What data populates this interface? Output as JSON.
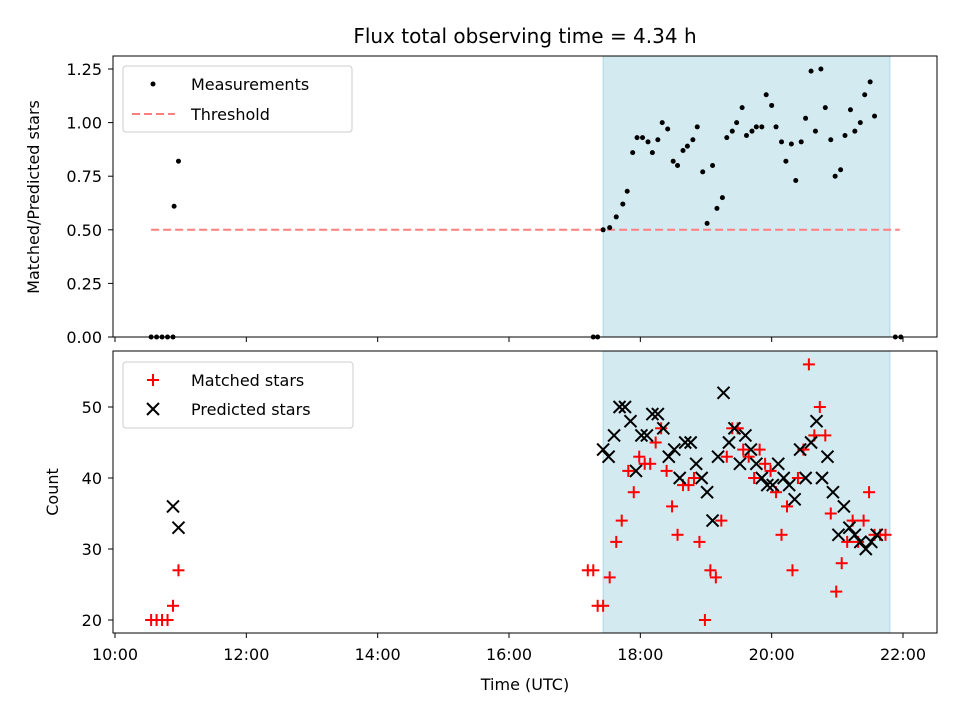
{
  "chart_data": [
    {
      "type": "scatter",
      "title": "Flux total observing time = 4.34 h",
      "xlabel": "",
      "ylabel": "Matched/Predicted stars",
      "xlim": [
        "10:00",
        "22:30"
      ],
      "ylim": [
        0,
        1.3
      ],
      "yticks": [
        "0.00",
        "0.25",
        "0.50",
        "0.75",
        "1.00",
        "1.25"
      ],
      "shaded_region": {
        "x_start": "17:26",
        "x_end": "21:48",
        "color": "#d3eaf0"
      },
      "legend": {
        "position": "top-left",
        "entries": [
          "Measurements",
          "Threshold"
        ]
      },
      "threshold": {
        "name": "Threshold",
        "y": 0.5,
        "x_start": "10:33",
        "x_end": "21:57",
        "color": "#ff7f7f",
        "style": "dashed"
      },
      "series": [
        {
          "name": "Measurements",
          "color": "#000000",
          "marker": "dot",
          "points": [
            [
              "10:33",
              0
            ],
            [
              "10:38",
              0
            ],
            [
              "10:43",
              0
            ],
            [
              "10:48",
              0
            ],
            [
              "10:53",
              0
            ],
            [
              "10:54",
              0.61
            ],
            [
              "10:58",
              0.82
            ],
            [
              "17:17",
              0
            ],
            [
              "17:21",
              0
            ],
            [
              "17:26",
              0.5
            ],
            [
              "17:32",
              0.51
            ],
            [
              "17:38",
              0.56
            ],
            [
              "17:44",
              0.62
            ],
            [
              "17:48",
              0.68
            ],
            [
              "17:53",
              0.86
            ],
            [
              "17:57",
              0.93
            ],
            [
              "18:02",
              0.93
            ],
            [
              "18:07",
              0.91
            ],
            [
              "18:11",
              0.86
            ],
            [
              "18:16",
              0.92
            ],
            [
              "18:20",
              1.0
            ],
            [
              "18:25",
              0.97
            ],
            [
              "18:30",
              0.82
            ],
            [
              "18:34",
              0.8
            ],
            [
              "18:39",
              0.87
            ],
            [
              "18:43",
              0.89
            ],
            [
              "18:48",
              0.92
            ],
            [
              "18:52",
              0.98
            ],
            [
              "18:57",
              0.77
            ],
            [
              "19:01",
              0.53
            ],
            [
              "19:06",
              0.8
            ],
            [
              "19:10",
              0.6
            ],
            [
              "19:15",
              0.65
            ],
            [
              "19:19",
              0.93
            ],
            [
              "19:24",
              0.96
            ],
            [
              "19:28",
              1.0
            ],
            [
              "19:33",
              1.07
            ],
            [
              "19:37",
              0.94
            ],
            [
              "19:42",
              0.96
            ],
            [
              "19:46",
              0.98
            ],
            [
              "19:51",
              0.98
            ],
            [
              "19:55",
              1.13
            ],
            [
              "20:00",
              1.08
            ],
            [
              "20:04",
              0.98
            ],
            [
              "20:09",
              0.91
            ],
            [
              "20:13",
              0.82
            ],
            [
              "20:18",
              0.9
            ],
            [
              "20:22",
              0.73
            ],
            [
              "20:27",
              0.91
            ],
            [
              "20:31",
              1.02
            ],
            [
              "20:36",
              1.24
            ],
            [
              "20:40",
              0.96
            ],
            [
              "20:45",
              1.25
            ],
            [
              "20:49",
              1.07
            ],
            [
              "20:54",
              0.92
            ],
            [
              "20:58",
              0.75
            ],
            [
              "21:03",
              0.78
            ],
            [
              "21:07",
              0.94
            ],
            [
              "21:12",
              1.06
            ],
            [
              "21:16",
              0.96
            ],
            [
              "21:21",
              1.0
            ],
            [
              "21:25",
              1.13
            ],
            [
              "21:30",
              1.19
            ],
            [
              "21:34",
              1.03
            ],
            [
              "21:53",
              0
            ],
            [
              "21:58",
              0
            ]
          ]
        }
      ]
    },
    {
      "type": "scatter",
      "title": "",
      "xlabel": "Time (UTC)",
      "ylabel": "Count",
      "xlim": [
        "10:00",
        "22:30"
      ],
      "ylim": [
        18,
        58
      ],
      "yticks": [
        "20",
        "30",
        "40",
        "50"
      ],
      "xticks": [
        "10:00",
        "12:00",
        "14:00",
        "16:00",
        "18:00",
        "20:00",
        "22:00"
      ],
      "shaded_region": {
        "x_start": "17:26",
        "x_end": "21:48",
        "color": "#d3eaf0"
      },
      "legend": {
        "position": "top-left",
        "entries": [
          "Matched stars",
          "Predicted stars"
        ]
      },
      "series": [
        {
          "name": "Matched stars",
          "color": "#ff0000",
          "marker": "plus",
          "points": [
            [
              "10:33",
              20
            ],
            [
              "10:38",
              20
            ],
            [
              "10:43",
              20
            ],
            [
              "10:48",
              20
            ],
            [
              "10:53",
              22
            ],
            [
              "10:58",
              27
            ],
            [
              "17:12",
              27
            ],
            [
              "17:17",
              27
            ],
            [
              "17:21",
              22
            ],
            [
              "17:26",
              22
            ],
            [
              "17:32",
              26
            ],
            [
              "17:38",
              31
            ],
            [
              "17:43",
              34
            ],
            [
              "17:49",
              41
            ],
            [
              "17:54",
              38
            ],
            [
              "17:59",
              43
            ],
            [
              "18:04",
              42
            ],
            [
              "18:09",
              42
            ],
            [
              "18:14",
              45
            ],
            [
              "18:19",
              47
            ],
            [
              "18:24",
              41
            ],
            [
              "18:29",
              36
            ],
            [
              "18:34",
              32
            ],
            [
              "18:39",
              39
            ],
            [
              "18:44",
              39
            ],
            [
              "18:49",
              40
            ],
            [
              "18:54",
              31
            ],
            [
              "18:59",
              20
            ],
            [
              "19:04",
              27
            ],
            [
              "19:09",
              26
            ],
            [
              "19:14",
              34
            ],
            [
              "19:19",
              43
            ],
            [
              "19:24",
              47
            ],
            [
              "19:29",
              47
            ],
            [
              "19:34",
              44
            ],
            [
              "19:39",
              43
            ],
            [
              "19:44",
              40
            ],
            [
              "19:49",
              44
            ],
            [
              "19:54",
              42
            ],
            [
              "19:59",
              41
            ],
            [
              "20:04",
              38
            ],
            [
              "20:09",
              32
            ],
            [
              "20:14",
              36
            ],
            [
              "20:19",
              27
            ],
            [
              "20:24",
              40
            ],
            [
              "20:29",
              44
            ],
            [
              "20:34",
              56
            ],
            [
              "20:39",
              46
            ],
            [
              "20:44",
              50
            ],
            [
              "20:49",
              46
            ],
            [
              "20:54",
              35
            ],
            [
              "20:59",
              24
            ],
            [
              "21:04",
              28
            ],
            [
              "21:09",
              31
            ],
            [
              "21:14",
              34
            ],
            [
              "21:19",
              31
            ],
            [
              "21:24",
              34
            ],
            [
              "21:29",
              38
            ],
            [
              "21:34",
              32
            ],
            [
              "21:39",
              32
            ],
            [
              "21:44",
              32
            ]
          ]
        },
        {
          "name": "Predicted stars",
          "color": "#000000",
          "marker": "x",
          "points": [
            [
              "10:53",
              36
            ],
            [
              "10:58",
              33
            ],
            [
              "17:26",
              44
            ],
            [
              "17:31",
              43
            ],
            [
              "17:36",
              46
            ],
            [
              "17:41",
              50
            ],
            [
              "17:46",
              50
            ],
            [
              "17:51",
              48
            ],
            [
              "17:56",
              41
            ],
            [
              "18:01",
              46
            ],
            [
              "18:06",
              46
            ],
            [
              "18:11",
              49
            ],
            [
              "18:16",
              49
            ],
            [
              "18:21",
              47
            ],
            [
              "18:26",
              43
            ],
            [
              "18:31",
              44
            ],
            [
              "18:36",
              40
            ],
            [
              "18:41",
              45
            ],
            [
              "18:46",
              45
            ],
            [
              "18:51",
              42
            ],
            [
              "18:56",
              40
            ],
            [
              "19:01",
              38
            ],
            [
              "19:06",
              34
            ],
            [
              "19:11",
              43
            ],
            [
              "19:16",
              52
            ],
            [
              "19:21",
              45
            ],
            [
              "19:26",
              47
            ],
            [
              "19:31",
              42
            ],
            [
              "19:36",
              46
            ],
            [
              "19:41",
              44
            ],
            [
              "19:46",
              42
            ],
            [
              "19:51",
              40
            ],
            [
              "19:56",
              39
            ],
            [
              "20:01",
              39
            ],
            [
              "20:06",
              42
            ],
            [
              "20:11",
              40
            ],
            [
              "20:16",
              39
            ],
            [
              "20:21",
              37
            ],
            [
              "20:26",
              44
            ],
            [
              "20:31",
              40
            ],
            [
              "20:36",
              45
            ],
            [
              "20:41",
              48
            ],
            [
              "20:46",
              40
            ],
            [
              "20:51",
              43
            ],
            [
              "20:56",
              38
            ],
            [
              "21:01",
              32
            ],
            [
              "21:06",
              36
            ],
            [
              "21:11",
              33
            ],
            [
              "21:16",
              32
            ],
            [
              "21:21",
              31
            ],
            [
              "21:26",
              30
            ],
            [
              "21:31",
              31
            ],
            [
              "21:36",
              32
            ]
          ]
        }
      ]
    }
  ]
}
